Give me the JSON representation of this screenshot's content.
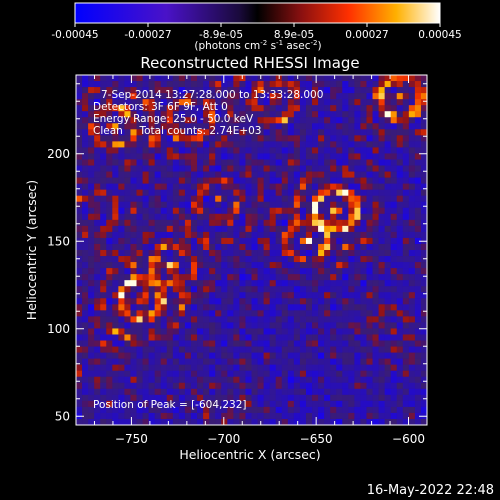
{
  "colorbar": {
    "ticks": [
      "-0.00045",
      "-0.00027",
      "-8.9e-05",
      "8.9e-05",
      "0.00027",
      "0.00045"
    ],
    "unit_main": "(photons cm",
    "unit_exp1": "-2",
    "unit_mid": " s",
    "unit_exp2": "-1",
    "unit_end": " asec",
    "unit_exp3": "-2",
    "unit_close": ")",
    "range": [
      -0.00045,
      0.00045
    ]
  },
  "header": {
    "time_range": "7-Sep-2014 13:27:28.000 to 13:33:28.000",
    "detectors": "Detectors: 3F 6F 9F, Att 0",
    "energy": "Energy Range: 25.0 - 50.0 keV",
    "algorithm": "Clean     Total counts: 2.74E+03"
  },
  "peak_text": "Position of Peak = [-604,232]",
  "timestamp": "16-May-2022 22:48",
  "chart_data": {
    "type": "heatmap",
    "title": "Reconstructed RHESSI Image",
    "xlabel": "Heliocentric X (arcsec)",
    "ylabel": "Heliocentric Y (arcsec)",
    "xlim": [
      -780,
      -590
    ],
    "ylim": [
      45,
      245
    ],
    "xticks": [
      -750,
      -700,
      -650,
      -600
    ],
    "yticks": [
      50,
      100,
      150,
      200
    ],
    "x_tick_labels": [
      "−750",
      "−700",
      "−650",
      "−600"
    ],
    "y_tick_labels": [
      "50",
      "100",
      "150",
      "200"
    ],
    "sources": [
      {
        "x": -760,
        "y": 215,
        "intensity": 0.8
      },
      {
        "x": -718,
        "y": 220,
        "intensity": 0.7
      },
      {
        "x": -672,
        "y": 230,
        "intensity": 0.65
      },
      {
        "x": -604,
        "y": 232,
        "intensity": 1.0
      },
      {
        "x": -640,
        "y": 168,
        "intensity": 0.95
      },
      {
        "x": -655,
        "y": 150,
        "intensity": 0.6
      },
      {
        "x": -745,
        "y": 117,
        "intensity": 0.9
      },
      {
        "x": -728,
        "y": 137,
        "intensity": 0.6
      },
      {
        "x": -703,
        "y": 173,
        "intensity": 0.55
      },
      {
        "x": -770,
        "y": 165,
        "intensity": 0.5
      },
      {
        "x": -770,
        "y": 80,
        "intensity": 0.4
      },
      {
        "x": -700,
        "y": 60,
        "intensity": 0.35
      },
      {
        "x": -610,
        "y": 100,
        "intensity": 0.45
      }
    ]
  }
}
